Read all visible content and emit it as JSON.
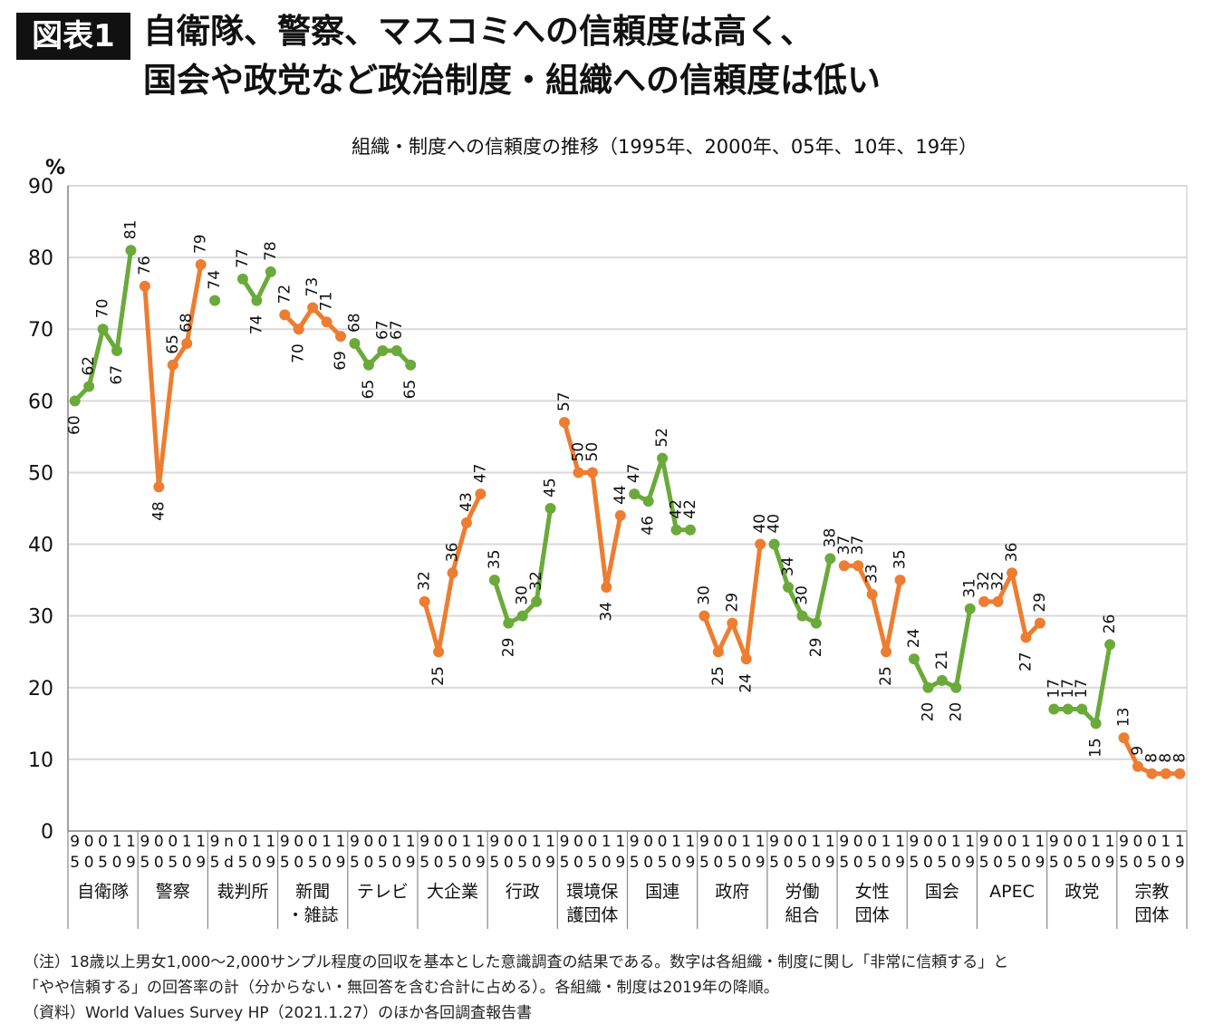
{
  "figure_badge": "図表1",
  "headline_1": "自衛隊、警察、マスコミへの信頼度は高く、",
  "headline_2": "国会や政党など政治制度・組織への信頼度は低い",
  "notes": [
    "（注）18歳以上男女1,000〜2,000サンプル程度の回収を基本とした意識調査の結果である。数字は各組織・制度に関し「非常に信頼する」と",
    "「やや信頼する」の回答率の計（分からない・無回答を含む合計に占める）。各組織・制度は2019年の降順。",
    "（資料）World Values Survey HP（2021.1.27）のほか各回調査報告書"
  ],
  "colors": {
    "green": "#6aaa3a",
    "orange": "#ed7d31",
    "grid": "#d9d9d9",
    "axis": "#888888"
  },
  "chart_data": {
    "type": "line",
    "title": "組織・制度への信頼度の推移（1995年、2000年、05年、10年、19年）",
    "ylabel": "%",
    "ylim": [
      0,
      90
    ],
    "yticks": [
      0,
      10,
      20,
      30,
      40,
      50,
      60,
      70,
      80,
      90
    ],
    "grid": true,
    "x": [
      "95",
      "00",
      "05",
      "10",
      "19"
    ],
    "groups": [
      {
        "name": "自衛隊",
        "label_lines": [
          "自衛隊"
        ],
        "color": "green",
        "values": [
          60,
          62,
          70,
          67,
          81
        ],
        "data_labels": [
          "60",
          "62",
          "70",
          "67",
          "81"
        ],
        "tick_top": [
          "9",
          "0",
          "0",
          "1",
          "1"
        ],
        "tick_bottom": [
          "5",
          "0",
          "5",
          "0",
          "9"
        ]
      },
      {
        "name": "警察",
        "label_lines": [
          "警察"
        ],
        "color": "orange",
        "values": [
          76,
          48,
          65,
          68,
          79
        ],
        "data_labels": [
          "76",
          "48",
          "65",
          "68",
          "79"
        ],
        "tick_top": [
          "9",
          "0",
          "0",
          "1",
          "1"
        ],
        "tick_bottom": [
          "5",
          "0",
          "5",
          "0",
          "9"
        ]
      },
      {
        "name": "裁判所",
        "label_lines": [
          "裁判所"
        ],
        "color": "green",
        "values": [
          74,
          null,
          77,
          74,
          78
        ],
        "data_labels": [
          "74",
          "",
          "77",
          "74",
          "78"
        ],
        "tick_top": [
          "9",
          "n",
          "0",
          "1",
          "1"
        ],
        "tick_bottom": [
          "5",
          "d",
          "5",
          "0",
          "9"
        ]
      },
      {
        "name": "新聞・雑誌",
        "label_lines": [
          "新聞",
          "・雑誌"
        ],
        "color": "orange",
        "values": [
          72,
          70,
          73,
          71,
          69
        ],
        "data_labels": [
          "72",
          "70",
          "73",
          "71",
          "69"
        ],
        "tick_top": [
          "9",
          "0",
          "0",
          "1",
          "1"
        ],
        "tick_bottom": [
          "5",
          "0",
          "5",
          "0",
          "9"
        ]
      },
      {
        "name": "テレビ",
        "label_lines": [
          "テレビ"
        ],
        "color": "green",
        "values": [
          68,
          65,
          67,
          67,
          65
        ],
        "data_labels": [
          "68",
          "65",
          "67",
          "67",
          "65"
        ],
        "tick_top": [
          "9",
          "0",
          "0",
          "1",
          "1"
        ],
        "tick_bottom": [
          "5",
          "0",
          "5",
          "0",
          "9"
        ]
      },
      {
        "name": "大企業",
        "label_lines": [
          "大企業"
        ],
        "color": "orange",
        "values": [
          32,
          25,
          36,
          43,
          47
        ],
        "data_labels": [
          "32",
          "25",
          "36",
          "43",
          "47"
        ],
        "tick_top": [
          "9",
          "0",
          "0",
          "1",
          "1"
        ],
        "tick_bottom": [
          "5",
          "0",
          "5",
          "0",
          "9"
        ]
      },
      {
        "name": "行政",
        "label_lines": [
          "行政"
        ],
        "color": "green",
        "values": [
          35,
          29,
          30,
          32,
          45
        ],
        "data_labels": [
          "35",
          "29",
          "30",
          "32",
          "45"
        ],
        "tick_top": [
          "9",
          "0",
          "0",
          "1",
          "1"
        ],
        "tick_bottom": [
          "5",
          "0",
          "5",
          "0",
          "9"
        ]
      },
      {
        "name": "環境保護団体",
        "label_lines": [
          "環境保",
          "護団体"
        ],
        "color": "orange",
        "values": [
          57,
          50,
          50,
          34,
          44
        ],
        "data_labels": [
          "57",
          "50",
          "50",
          "34",
          "44"
        ],
        "tick_top": [
          "9",
          "0",
          "0",
          "1",
          "1"
        ],
        "tick_bottom": [
          "5",
          "0",
          "5",
          "0",
          "9"
        ]
      },
      {
        "name": "国連",
        "label_lines": [
          "国連"
        ],
        "color": "green",
        "values": [
          47,
          46,
          52,
          42,
          42
        ],
        "data_labels": [
          "47",
          "46",
          "52",
          "42",
          "42"
        ],
        "tick_top": [
          "9",
          "0",
          "0",
          "1",
          "1"
        ],
        "tick_bottom": [
          "5",
          "0",
          "5",
          "0",
          "9"
        ]
      },
      {
        "name": "政府",
        "label_lines": [
          "政府"
        ],
        "color": "orange",
        "values": [
          30,
          25,
          29,
          24,
          40
        ],
        "data_labels": [
          "30",
          "25",
          "29",
          "24",
          "40"
        ],
        "tick_top": [
          "9",
          "0",
          "0",
          "1",
          "1"
        ],
        "tick_bottom": [
          "5",
          "0",
          "5",
          "0",
          "9"
        ]
      },
      {
        "name": "労働組合",
        "label_lines": [
          "労働",
          "組合"
        ],
        "color": "green",
        "values": [
          40,
          34,
          30,
          29,
          38
        ],
        "data_labels": [
          "40",
          "34",
          "30",
          "29",
          "38"
        ],
        "tick_top": [
          "9",
          "0",
          "0",
          "1",
          "1"
        ],
        "tick_bottom": [
          "5",
          "0",
          "5",
          "0",
          "9"
        ]
      },
      {
        "name": "女性団体",
        "label_lines": [
          "女性",
          "団体"
        ],
        "color": "orange",
        "values": [
          37,
          37,
          33,
          25,
          35
        ],
        "data_labels": [
          "37",
          "37",
          "33",
          "25",
          "35"
        ],
        "tick_top": [
          "9",
          "0",
          "0",
          "1",
          "1"
        ],
        "tick_bottom": [
          "5",
          "0",
          "5",
          "0",
          "9"
        ]
      },
      {
        "name": "国会",
        "label_lines": [
          "国会"
        ],
        "color": "green",
        "values": [
          24,
          20,
          21,
          20,
          31
        ],
        "data_labels": [
          "24",
          "20",
          "21",
          "20",
          "31"
        ],
        "tick_top": [
          "9",
          "0",
          "0",
          "1",
          "1"
        ],
        "tick_bottom": [
          "5",
          "0",
          "5",
          "0",
          "9"
        ]
      },
      {
        "name": "APEC",
        "label_lines": [
          "APEC"
        ],
        "color": "orange",
        "values": [
          32,
          32,
          36,
          27,
          29
        ],
        "data_labels": [
          "32",
          "32",
          "36",
          "27",
          "29"
        ],
        "tick_top": [
          "9",
          "0",
          "0",
          "1",
          "1"
        ],
        "tick_bottom": [
          "5",
          "0",
          "5",
          "0",
          "9"
        ]
      },
      {
        "name": "政党",
        "label_lines": [
          "政党"
        ],
        "color": "green",
        "values": [
          17,
          17,
          17,
          15,
          26
        ],
        "data_labels": [
          "17",
          "17",
          "17",
          "15",
          "26"
        ],
        "tick_top": [
          "9",
          "0",
          "0",
          "1",
          "1"
        ],
        "tick_bottom": [
          "5",
          "0",
          "5",
          "0",
          "9"
        ]
      },
      {
        "name": "宗教団体",
        "label_lines": [
          "宗教",
          "団体"
        ],
        "color": "orange",
        "values": [
          13,
          9,
          8,
          8,
          8
        ],
        "data_labels": [
          "13",
          "9",
          "8",
          "8",
          "8"
        ],
        "tick_top": [
          "9",
          "0",
          "0",
          "1",
          "1"
        ],
        "tick_bottom": [
          "5",
          "0",
          "5",
          "0",
          "9"
        ]
      }
    ]
  }
}
